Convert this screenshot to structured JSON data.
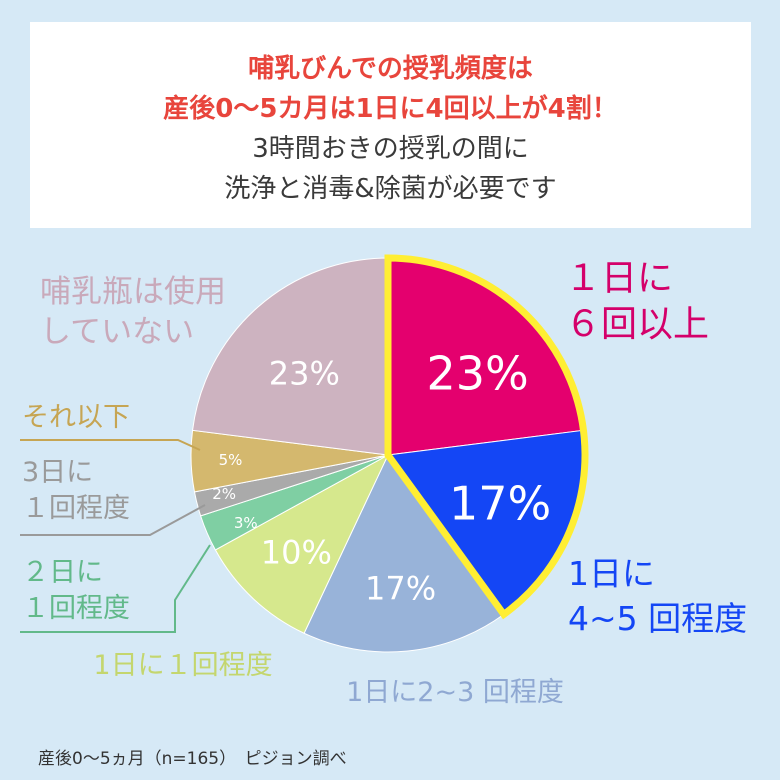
{
  "header": {
    "headline_line1": "哺乳びんでの授乳頻度は",
    "headline_line2": "産後0〜5カ月は1日に4回以上が4割！",
    "subline1": "3時間おきの授乳の間に",
    "subline2": "洗浄と消毒&除菌が必要です"
  },
  "chart_data": {
    "type": "pie",
    "title": "",
    "slices": [
      {
        "label_lines": [
          "１日に",
          "６回以上"
        ],
        "value": 23,
        "value_label": "23%",
        "color": "#e4006e",
        "label_color": "#d4006a",
        "highlight": true
      },
      {
        "label_lines": [
          "1日に",
          "4~5 回程度"
        ],
        "value": 17,
        "value_label": "17%",
        "color": "#1446f5",
        "label_color": "#1446f5",
        "highlight": true
      },
      {
        "label_lines": [
          "1日に2~3 回程度"
        ],
        "value": 17,
        "value_label": "17%",
        "color": "#98b3d9",
        "label_color": "#8fa8d2"
      },
      {
        "label_lines": [
          "1日に１回程度"
        ],
        "value": 10,
        "value_label": "10%",
        "color": "#d6e88d",
        "label_color": "#c4d66e"
      },
      {
        "label_lines": [
          "２日に",
          "１回程度"
        ],
        "value": 3,
        "value_label": "3%",
        "color": "#7fcfa3",
        "label_color": "#62b98a"
      },
      {
        "label_lines": [
          "3日に",
          "１回程度"
        ],
        "value": 2,
        "value_label": "2%",
        "color": "#aaaaaa",
        "label_color": "#9a9a9a"
      },
      {
        "label_lines": [
          "それ以下"
        ],
        "value": 5,
        "value_label": "5%",
        "color": "#d4b86e",
        "label_color": "#c6a553"
      },
      {
        "label_lines": [
          "哺乳瓶は使用",
          "していない"
        ],
        "value": 23,
        "value_label": "23%",
        "color": "#cdb3c0",
        "label_color": "#c9a9ba"
      }
    ],
    "highlight_color": "#ffee33"
  },
  "footer": {
    "note": "産後0〜5ヵ月（n=165）　ピジョン調べ"
  }
}
